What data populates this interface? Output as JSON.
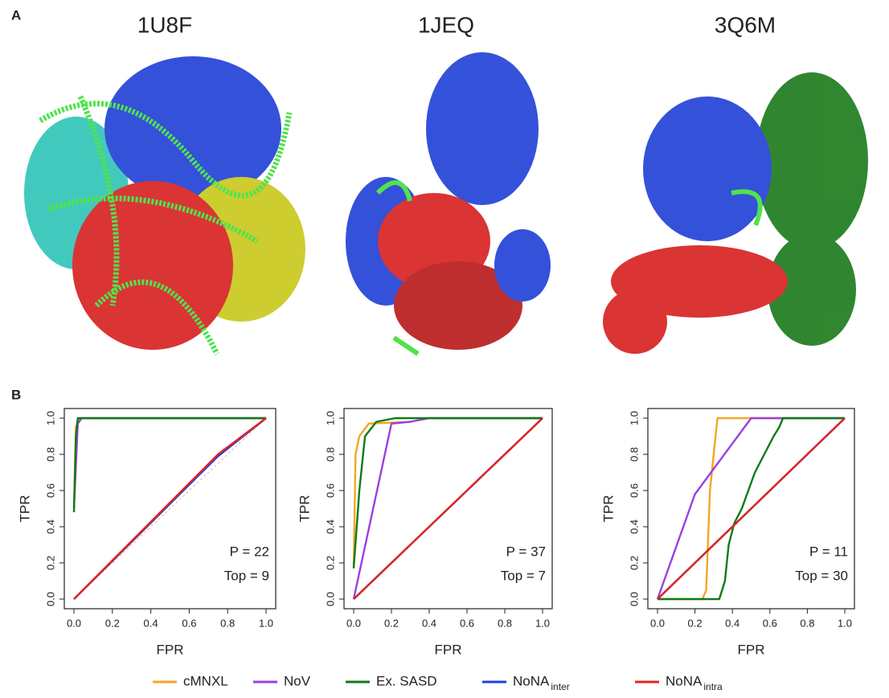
{
  "panel_labels": [
    "A",
    "B"
  ],
  "structures": [
    "1U8F",
    "1JEQ",
    "3Q6M"
  ],
  "chart_data": [
    {
      "type": "line",
      "xlabel": "FPR",
      "ylabel": "TPR",
      "annotations": [
        "P = 22",
        "Top = 9"
      ],
      "xlim": [
        0,
        1
      ],
      "ylim": [
        0,
        1
      ],
      "xticks": [
        {
          "value": 0,
          "label": "0.0"
        },
        {
          "value": 0.2,
          "label": "0.2"
        },
        {
          "value": 0.4,
          "label": "0.4"
        },
        {
          "value": 0.6,
          "label": "0.6"
        },
        {
          "value": 0.8,
          "label": "0.8"
        },
        {
          "value": 1,
          "label": "1.0"
        }
      ],
      "yticks": [
        {
          "value": 0,
          "label": "0.0"
        },
        {
          "value": 0.2,
          "label": "0.2"
        },
        {
          "value": 0.4,
          "label": "0.4"
        },
        {
          "value": 0.6,
          "label": "0.6"
        },
        {
          "value": 0.8,
          "label": "0.8"
        },
        {
          "value": 1,
          "label": "1.0"
        }
      ],
      "series": [
        {
          "name": "cMNXL",
          "color": "#f5a623",
          "x": [
            0,
            0.01,
            0.03,
            1
          ],
          "values": [
            0.5,
            0.95,
            1,
            1
          ]
        },
        {
          "name": "NoV",
          "color": "#9b3fe0",
          "x": [
            0,
            0.02,
            0.04,
            1
          ],
          "values": [
            0.5,
            0.97,
            1,
            1
          ]
        },
        {
          "name": "Ex. SASD",
          "color": "#0f7a1a",
          "x": [
            0,
            0.01,
            0.02,
            1
          ],
          "values": [
            0.48,
            0.9,
            1,
            1
          ]
        },
        {
          "name": "NoNA",
          "name_sub": "inter",
          "color": "#1f3fe0",
          "x": [
            0,
            0.75,
            1
          ],
          "values": [
            0,
            0.79,
            1
          ]
        },
        {
          "name": "NoNA",
          "name_sub": "intra",
          "color": "#e0231f",
          "x": [
            0,
            0.75,
            1
          ],
          "values": [
            0,
            0.8,
            1
          ]
        }
      ]
    },
    {
      "type": "line",
      "xlabel": "FPR",
      "ylabel": "TPR",
      "annotations": [
        "P = 37",
        "Top = 7"
      ],
      "xlim": [
        0,
        1
      ],
      "ylim": [
        0,
        1
      ],
      "xticks": [
        {
          "value": 0,
          "label": "0.0"
        },
        {
          "value": 0.2,
          "label": "0.2"
        },
        {
          "value": 0.4,
          "label": "0.4"
        },
        {
          "value": 0.6,
          "label": "0.6"
        },
        {
          "value": 0.8,
          "label": "0.8"
        },
        {
          "value": 1,
          "label": "1.0"
        }
      ],
      "yticks": [
        {
          "value": 0,
          "label": "0.0"
        },
        {
          "value": 0.2,
          "label": "0.2"
        },
        {
          "value": 0.4,
          "label": "0.4"
        },
        {
          "value": 0.6,
          "label": "0.6"
        },
        {
          "value": 0.8,
          "label": "0.8"
        },
        {
          "value": 1,
          "label": "1.0"
        }
      ],
      "series": [
        {
          "color": "#f5a623",
          "x": [
            0,
            0.01,
            0.03,
            0.08,
            0.3,
            0.4,
            1
          ],
          "values": [
            0.17,
            0.8,
            0.9,
            0.97,
            0.98,
            1,
            1
          ]
        },
        {
          "color": "#9b3fe0",
          "x": [
            0,
            0.2,
            0.3,
            0.4,
            1
          ],
          "values": [
            0,
            0.97,
            0.98,
            1,
            1
          ]
        },
        {
          "color": "#0f7a1a",
          "x": [
            0,
            0.03,
            0.06,
            0.12,
            0.22,
            1
          ],
          "values": [
            0.17,
            0.6,
            0.9,
            0.98,
            1,
            1
          ]
        },
        {
          "color": "#1f3fe0",
          "x": [
            0,
            1
          ],
          "values": [
            0,
            1
          ]
        },
        {
          "color": "#e0231f",
          "x": [
            0,
            1
          ],
          "values": [
            0,
            1
          ]
        }
      ]
    },
    {
      "type": "line",
      "xlabel": "FPR",
      "ylabel": "TPR",
      "annotations": [
        "P = 11",
        "Top = 30"
      ],
      "xlim": [
        0,
        1
      ],
      "ylim": [
        0,
        1
      ],
      "xticks": [
        {
          "value": 0,
          "label": "0.0"
        },
        {
          "value": 0.2,
          "label": "0.2"
        },
        {
          "value": 0.4,
          "label": "0.4"
        },
        {
          "value": 0.6,
          "label": "0.6"
        },
        {
          "value": 0.8,
          "label": "0.8"
        },
        {
          "value": 1,
          "label": "1.0"
        }
      ],
      "yticks": [
        {
          "value": 0,
          "label": "0.0"
        },
        {
          "value": 0.2,
          "label": "0.2"
        },
        {
          "value": 0.4,
          "label": "0.4"
        },
        {
          "value": 0.6,
          "label": "0.6"
        },
        {
          "value": 0.8,
          "label": "0.8"
        },
        {
          "value": 1,
          "label": "1.0"
        }
      ],
      "series": [
        {
          "color": "#f5a623",
          "x": [
            0,
            0.24,
            0.26,
            0.28,
            0.32,
            1
          ],
          "values": [
            0,
            0,
            0.05,
            0.6,
            1,
            1
          ]
        },
        {
          "color": "#9b3fe0",
          "x": [
            0,
            0.2,
            0.5,
            1
          ],
          "values": [
            0,
            0.58,
            1,
            1
          ]
        },
        {
          "color": "#0f7a1a",
          "x": [
            0,
            0.33,
            0.36,
            0.38,
            0.41,
            0.45,
            0.52,
            0.58,
            0.62,
            0.65,
            0.67,
            1
          ],
          "values": [
            0,
            0,
            0.1,
            0.3,
            0.42,
            0.5,
            0.7,
            0.82,
            0.9,
            0.95,
            1,
            1
          ]
        },
        {
          "color": "#1f3fe0",
          "x": [
            0,
            1
          ],
          "values": [
            0,
            1
          ]
        },
        {
          "color": "#e0231f",
          "x": [
            0,
            1
          ],
          "values": [
            0,
            1
          ]
        }
      ]
    }
  ]
}
